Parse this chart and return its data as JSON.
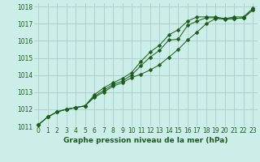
{
  "title": "Graphe pression niveau de la mer (hPa)",
  "bg_color": "#cceee8",
  "grid_color": "#aacccc",
  "line_color": "#1a5c1a",
  "xlim": [
    -0.5,
    23.5
  ],
  "ylim": [
    1011.0,
    1018.2
  ],
  "yticks": [
    1011,
    1012,
    1013,
    1014,
    1015,
    1016,
    1017,
    1018
  ],
  "xticks": [
    0,
    1,
    2,
    3,
    4,
    5,
    6,
    7,
    8,
    9,
    10,
    11,
    12,
    13,
    14,
    15,
    16,
    17,
    18,
    19,
    20,
    21,
    22,
    23
  ],
  "hours": [
    0,
    1,
    2,
    3,
    4,
    5,
    6,
    7,
    8,
    9,
    10,
    11,
    12,
    13,
    14,
    15,
    16,
    17,
    18,
    19,
    20,
    21,
    22,
    23
  ],
  "line1": [
    1011.1,
    1011.55,
    1011.85,
    1012.0,
    1012.1,
    1012.2,
    1012.7,
    1013.0,
    1013.35,
    1013.55,
    1013.85,
    1014.05,
    1014.3,
    1014.6,
    1015.05,
    1015.5,
    1016.05,
    1016.5,
    1017.0,
    1017.3,
    1017.3,
    1017.3,
    1017.35,
    1017.8
  ],
  "line2": [
    1011.1,
    1011.55,
    1011.85,
    1012.0,
    1012.1,
    1012.2,
    1012.75,
    1013.1,
    1013.45,
    1013.65,
    1014.0,
    1014.55,
    1015.05,
    1015.45,
    1016.05,
    1016.1,
    1016.9,
    1017.15,
    1017.35,
    1017.35,
    1017.25,
    1017.3,
    1017.35,
    1017.8
  ],
  "line3": [
    1011.1,
    1011.55,
    1011.85,
    1012.0,
    1012.1,
    1012.2,
    1012.85,
    1013.25,
    1013.55,
    1013.8,
    1014.15,
    1014.8,
    1015.35,
    1015.75,
    1016.35,
    1016.65,
    1017.15,
    1017.4,
    1017.4,
    1017.4,
    1017.3,
    1017.4,
    1017.4,
    1017.9
  ],
  "xlabel_fontsize": 6.5,
  "tick_fontsize": 5.5,
  "lw": 0.7,
  "ms": 2.5
}
